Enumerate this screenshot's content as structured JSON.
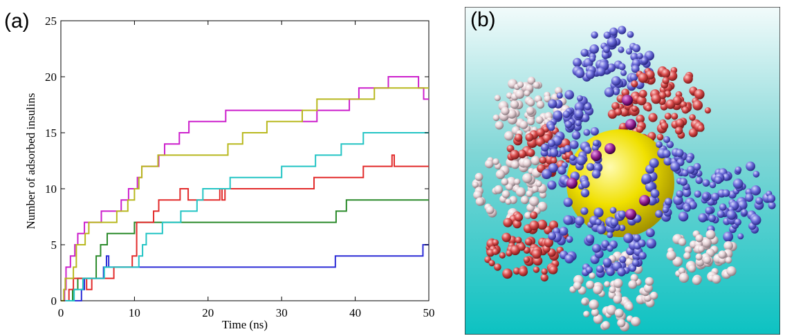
{
  "panels": {
    "a_label": "(a)",
    "b_label": "(b)"
  },
  "chart_data": {
    "type": "line",
    "title": "",
    "xlabel": "Time (ns)",
    "ylabel": "Number of adsorbed insulins",
    "xlim": [
      0,
      50
    ],
    "ylim": [
      0,
      25
    ],
    "xticks": [
      0,
      10,
      20,
      30,
      40,
      50
    ],
    "yticks": [
      0,
      5,
      10,
      15,
      20,
      25
    ],
    "grid": false,
    "legend": "none",
    "series": [
      {
        "color": "#2b2bd6",
        "points": [
          [
            0,
            0
          ],
          [
            2.8,
            0
          ],
          [
            2.8,
            1
          ],
          [
            3.2,
            1
          ],
          [
            3.2,
            2
          ],
          [
            5.8,
            2
          ],
          [
            5.8,
            3
          ],
          [
            6.2,
            3
          ],
          [
            6.2,
            4
          ],
          [
            6.5,
            4
          ],
          [
            6.5,
            3
          ],
          [
            37.3,
            3
          ],
          [
            37.3,
            4
          ],
          [
            49.2,
            4
          ],
          [
            49.2,
            5
          ],
          [
            50,
            5
          ]
        ]
      },
      {
        "color": "#2a8a2a",
        "points": [
          [
            0,
            0
          ],
          [
            1.6,
            0
          ],
          [
            1.6,
            1
          ],
          [
            2.3,
            1
          ],
          [
            2.3,
            2
          ],
          [
            4.8,
            2
          ],
          [
            4.8,
            4
          ],
          [
            5.4,
            4
          ],
          [
            5.4,
            5
          ],
          [
            6.3,
            5
          ],
          [
            6.3,
            6
          ],
          [
            10,
            6
          ],
          [
            10,
            7
          ],
          [
            37.4,
            7
          ],
          [
            37.4,
            8
          ],
          [
            38.8,
            8
          ],
          [
            38.8,
            9
          ],
          [
            50,
            9
          ]
        ]
      },
      {
        "color": "#e22a2a",
        "points": [
          [
            0,
            0
          ],
          [
            1.1,
            0
          ],
          [
            1.1,
            1
          ],
          [
            1.7,
            1
          ],
          [
            1.7,
            2
          ],
          [
            3.5,
            2
          ],
          [
            3.5,
            1
          ],
          [
            4.2,
            1
          ],
          [
            4.2,
            2
          ],
          [
            7.2,
            2
          ],
          [
            7.2,
            3
          ],
          [
            9.7,
            3
          ],
          [
            9.7,
            4
          ],
          [
            10.3,
            4
          ],
          [
            10.3,
            7
          ],
          [
            12.6,
            7
          ],
          [
            12.6,
            8
          ],
          [
            13.3,
            8
          ],
          [
            13.3,
            9
          ],
          [
            16.2,
            9
          ],
          [
            16.2,
            10
          ],
          [
            17.3,
            10
          ],
          [
            17.3,
            9
          ],
          [
            21.6,
            9
          ],
          [
            21.6,
            10
          ],
          [
            21.9,
            10
          ],
          [
            21.9,
            9
          ],
          [
            22.3,
            9
          ],
          [
            22.3,
            10
          ],
          [
            34.4,
            10
          ],
          [
            34.4,
            11
          ],
          [
            41.1,
            11
          ],
          [
            41.1,
            12
          ],
          [
            45,
            12
          ],
          [
            45,
            13
          ],
          [
            45.3,
            13
          ],
          [
            45.3,
            12
          ],
          [
            50,
            12
          ]
        ]
      },
      {
        "color": "#22c4c4",
        "points": [
          [
            0,
            0
          ],
          [
            1.8,
            0
          ],
          [
            1.8,
            1
          ],
          [
            3.0,
            1
          ],
          [
            3.0,
            2
          ],
          [
            5.9,
            2
          ],
          [
            5.9,
            3
          ],
          [
            10.6,
            3
          ],
          [
            10.6,
            4
          ],
          [
            11.1,
            4
          ],
          [
            11.1,
            5
          ],
          [
            11.6,
            5
          ],
          [
            11.6,
            6
          ],
          [
            13.8,
            6
          ],
          [
            13.8,
            7
          ],
          [
            16.3,
            7
          ],
          [
            16.3,
            8
          ],
          [
            18.5,
            8
          ],
          [
            18.5,
            9
          ],
          [
            19.3,
            9
          ],
          [
            19.3,
            10
          ],
          [
            23.0,
            10
          ],
          [
            23.0,
            11
          ],
          [
            30.0,
            11
          ],
          [
            30.0,
            12
          ],
          [
            34.6,
            12
          ],
          [
            34.6,
            13
          ],
          [
            38.1,
            13
          ],
          [
            38.1,
            14
          ],
          [
            41.1,
            14
          ],
          [
            41.1,
            15
          ],
          [
            50,
            15
          ]
        ]
      },
      {
        "color": "#cc1fcc",
        "points": [
          [
            0,
            0
          ],
          [
            0.5,
            0
          ],
          [
            0.5,
            1
          ],
          [
            0.7,
            1
          ],
          [
            0.7,
            3
          ],
          [
            1.3,
            3
          ],
          [
            1.3,
            4
          ],
          [
            1.9,
            4
          ],
          [
            1.9,
            5
          ],
          [
            2.3,
            5
          ],
          [
            2.3,
            6
          ],
          [
            3.2,
            6
          ],
          [
            3.2,
            7
          ],
          [
            5.5,
            7
          ],
          [
            5.5,
            8
          ],
          [
            8.2,
            8
          ],
          [
            8.2,
            9
          ],
          [
            9.2,
            9
          ],
          [
            9.2,
            10
          ],
          [
            10.4,
            10
          ],
          [
            10.4,
            11
          ],
          [
            11.0,
            11
          ],
          [
            11.0,
            12
          ],
          [
            13.3,
            12
          ],
          [
            13.3,
            13
          ],
          [
            14.1,
            13
          ],
          [
            14.1,
            14
          ],
          [
            16.1,
            14
          ],
          [
            16.1,
            15
          ],
          [
            17.4,
            15
          ],
          [
            17.4,
            16
          ],
          [
            22.4,
            16
          ],
          [
            22.4,
            17
          ],
          [
            32.8,
            17
          ],
          [
            32.8,
            16
          ],
          [
            34.8,
            16
          ],
          [
            34.8,
            17
          ],
          [
            39.2,
            17
          ],
          [
            39.2,
            18
          ],
          [
            40.5,
            18
          ],
          [
            40.5,
            19
          ],
          [
            44.5,
            19
          ],
          [
            44.5,
            20
          ],
          [
            48.6,
            20
          ],
          [
            48.6,
            19
          ],
          [
            49.3,
            19
          ],
          [
            49.3,
            18
          ],
          [
            50,
            18
          ]
        ]
      },
      {
        "color": "#b8b81e",
        "points": [
          [
            0,
            0
          ],
          [
            0.4,
            0
          ],
          [
            0.4,
            1
          ],
          [
            0.6,
            1
          ],
          [
            0.6,
            2
          ],
          [
            1.7,
            2
          ],
          [
            1.7,
            3
          ],
          [
            2.1,
            3
          ],
          [
            2.1,
            5
          ],
          [
            3.3,
            5
          ],
          [
            3.3,
            6
          ],
          [
            3.8,
            6
          ],
          [
            3.8,
            7
          ],
          [
            7.6,
            7
          ],
          [
            7.6,
            8
          ],
          [
            9.1,
            8
          ],
          [
            9.1,
            9
          ],
          [
            10.0,
            9
          ],
          [
            10.0,
            10
          ],
          [
            10.6,
            10
          ],
          [
            10.6,
            11
          ],
          [
            11.0,
            11
          ],
          [
            11.0,
            12
          ],
          [
            13.2,
            12
          ],
          [
            13.2,
            13
          ],
          [
            22.7,
            13
          ],
          [
            22.7,
            14
          ],
          [
            24.7,
            14
          ],
          [
            24.7,
            15
          ],
          [
            28.0,
            15
          ],
          [
            28.0,
            16
          ],
          [
            32.8,
            16
          ],
          [
            32.8,
            17
          ],
          [
            34.8,
            17
          ],
          [
            34.8,
            18
          ],
          [
            42.6,
            18
          ],
          [
            42.6,
            19
          ],
          [
            50,
            19
          ]
        ]
      }
    ]
  }
}
